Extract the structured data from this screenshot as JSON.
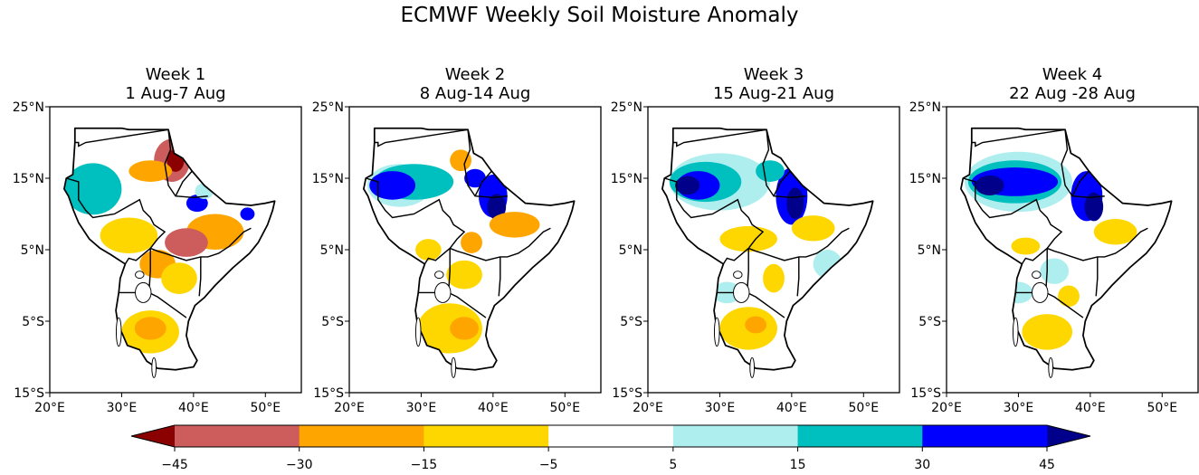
{
  "title": "ECMWF Weekly Soil Moisture Anomaly",
  "chart_data": {
    "type": "heatmap",
    "title": "ECMWF Weekly Soil Moisture Anomaly",
    "xlim": [
      20,
      55
    ],
    "ylim": [
      -15,
      25
    ],
    "x_ticks": [
      20,
      30,
      40,
      50
    ],
    "x_tick_labels": [
      "20°E",
      "30°E",
      "40°E",
      "50°E"
    ],
    "y_ticks": [
      25,
      15,
      5,
      -5,
      -15
    ],
    "y_tick_labels": [
      "25°N",
      "15°N",
      "5°N",
      "5°S",
      "15°S"
    ],
    "colorbar": {
      "levels": [
        -45,
        -30,
        -15,
        -5,
        5,
        15,
        30,
        45
      ],
      "tick_labels": [
        "−45",
        "−30",
        "−15",
        "−5",
        "5",
        "15",
        "30",
        "45"
      ],
      "colors": [
        "#cd5c5c",
        "#ffa500",
        "#ffd700",
        "#ffffff",
        "#afeeee",
        "#00bfbf",
        "#0000ff"
      ],
      "under_color": "#8b0000",
      "over_color": "#00008b",
      "extend": "both"
    },
    "panels": [
      {
        "title": "Week 1",
        "subtitle": "1 Aug-7 Aug",
        "anomalies": [
          {
            "lon": 37,
            "lat": 17.5,
            "rx": 2.5,
            "ry": 3,
            "value": -35
          },
          {
            "lon": 37.5,
            "lat": 17.5,
            "rx": 1.2,
            "ry": 1.6,
            "value": -48
          },
          {
            "lon": 34,
            "lat": 16,
            "rx": 3,
            "ry": 1.5,
            "value": -20
          },
          {
            "lon": 26,
            "lat": 13.5,
            "rx": 2.8,
            "ry": 2.3,
            "value": 36
          },
          {
            "lon": 26,
            "lat": 13.5,
            "rx": 4,
            "ry": 3.6,
            "value": 18
          },
          {
            "lon": 40.5,
            "lat": 11.5,
            "rx": 1.5,
            "ry": 1.2,
            "value": 33
          },
          {
            "lon": 41.5,
            "lat": 13.2,
            "rx": 1.3,
            "ry": 1.1,
            "value": 10
          },
          {
            "lon": 43,
            "lat": 7.5,
            "rx": 4,
            "ry": 2.5,
            "value": -20
          },
          {
            "lon": 39,
            "lat": 6,
            "rx": 3,
            "ry": 2,
            "value": -33
          },
          {
            "lon": 39,
            "lat": 6,
            "rx": 1.2,
            "ry": 0.9,
            "value": -45
          },
          {
            "lon": 31,
            "lat": 7,
            "rx": 4,
            "ry": 2.5,
            "value": -10
          },
          {
            "lon": 35,
            "lat": 3,
            "rx": 2.5,
            "ry": 2,
            "value": -20
          },
          {
            "lon": 38,
            "lat": 1,
            "rx": 2.5,
            "ry": 2.2,
            "value": -10
          },
          {
            "lon": 34,
            "lat": -6.5,
            "rx": 4,
            "ry": 3,
            "value": -12
          },
          {
            "lon": 34,
            "lat": -6,
            "rx": 2.2,
            "ry": 1.6,
            "value": -25
          },
          {
            "lon": 47.5,
            "lat": 10,
            "rx": 1,
            "ry": 0.9,
            "value": 32
          }
        ]
      },
      {
        "title": "Week 2",
        "subtitle": "8 Aug-14 Aug",
        "anomalies": [
          {
            "lon": 27,
            "lat": 14,
            "rx": 4.5,
            "ry": 3,
            "value": 14
          },
          {
            "lon": 29,
            "lat": 14.5,
            "rx": 5.5,
            "ry": 2.5,
            "value": 20
          },
          {
            "lon": 26,
            "lat": 14,
            "rx": 2,
            "ry": 1.3,
            "value": 45
          },
          {
            "lon": 26,
            "lat": 14,
            "rx": 3.2,
            "ry": 2,
            "value": 33
          },
          {
            "lon": 37.5,
            "lat": 15,
            "rx": 1.5,
            "ry": 1.3,
            "value": 35
          },
          {
            "lon": 40,
            "lat": 12.5,
            "rx": 2,
            "ry": 3,
            "value": 37
          },
          {
            "lon": 40.5,
            "lat": 11,
            "rx": 1.3,
            "ry": 1.8,
            "value": 48
          },
          {
            "lon": 35.5,
            "lat": 17.5,
            "rx": 1.5,
            "ry": 1.5,
            "value": -20
          },
          {
            "lon": 43,
            "lat": 8.5,
            "rx": 3.5,
            "ry": 1.8,
            "value": -20
          },
          {
            "lon": 37,
            "lat": 6,
            "rx": 1.5,
            "ry": 1.5,
            "value": -20
          },
          {
            "lon": 31,
            "lat": 5,
            "rx": 1.8,
            "ry": 1.5,
            "value": -10
          },
          {
            "lon": 36,
            "lat": 1.5,
            "rx": 2.5,
            "ry": 2,
            "value": -12
          },
          {
            "lon": 34,
            "lat": -6,
            "rx": 4.5,
            "ry": 3.5,
            "value": -10
          },
          {
            "lon": 36,
            "lat": -6,
            "rx": 2,
            "ry": 1.6,
            "value": -20
          }
        ]
      },
      {
        "title": "Week 3",
        "subtitle": "15 Aug-21 Aug",
        "anomalies": [
          {
            "lon": 30,
            "lat": 14.5,
            "rx": 7,
            "ry": 4,
            "value": 10
          },
          {
            "lon": 28,
            "lat": 14.5,
            "rx": 5,
            "ry": 2.8,
            "value": 20
          },
          {
            "lon": 27,
            "lat": 14,
            "rx": 3,
            "ry": 2,
            "value": 35
          },
          {
            "lon": 25.5,
            "lat": 14,
            "rx": 1.7,
            "ry": 1.3,
            "value": 48
          },
          {
            "lon": 40,
            "lat": 12.5,
            "rx": 2.2,
            "ry": 4,
            "value": 37
          },
          {
            "lon": 40.5,
            "lat": 11.5,
            "rx": 1.2,
            "ry": 2.2,
            "value": 48
          },
          {
            "lon": 37,
            "lat": 16,
            "rx": 2,
            "ry": 1.5,
            "value": 20
          },
          {
            "lon": 43,
            "lat": 8,
            "rx": 3,
            "ry": 1.8,
            "value": -10
          },
          {
            "lon": 34,
            "lat": 6.5,
            "rx": 4,
            "ry": 1.8,
            "value": -10
          },
          {
            "lon": 37.5,
            "lat": 1,
            "rx": 1.5,
            "ry": 2,
            "value": -10
          },
          {
            "lon": 34,
            "lat": -6,
            "rx": 4,
            "ry": 3,
            "value": -10
          },
          {
            "lon": 35,
            "lat": -5.5,
            "rx": 1.5,
            "ry": 1.2,
            "value": -20
          },
          {
            "lon": 31,
            "lat": -1,
            "rx": 2,
            "ry": 1.5,
            "value": 10
          },
          {
            "lon": 45,
            "lat": 3,
            "rx": 2,
            "ry": 2,
            "value": 10
          }
        ]
      },
      {
        "title": "Week 4",
        "subtitle": "22 Aug -28 Aug",
        "anomalies": [
          {
            "lon": 30,
            "lat": 14.5,
            "rx": 7.5,
            "ry": 4.2,
            "value": 10
          },
          {
            "lon": 29.5,
            "lat": 14.5,
            "rx": 6.5,
            "ry": 3,
            "value": 20
          },
          {
            "lon": 29.5,
            "lat": 14.5,
            "rx": 6,
            "ry": 2,
            "value": 35
          },
          {
            "lon": 26,
            "lat": 14,
            "rx": 2,
            "ry": 1.4,
            "value": 48
          },
          {
            "lon": 39.5,
            "lat": 12.5,
            "rx": 2.2,
            "ry": 3.5,
            "value": 37
          },
          {
            "lon": 40.5,
            "lat": 11,
            "rx": 1.3,
            "ry": 2,
            "value": 48
          },
          {
            "lon": 43.5,
            "lat": 7.5,
            "rx": 3,
            "ry": 1.8,
            "value": -10
          },
          {
            "lon": 31,
            "lat": 5.5,
            "rx": 2,
            "ry": 1.2,
            "value": -10
          },
          {
            "lon": 35,
            "lat": 2,
            "rx": 2,
            "ry": 1.8,
            "value": 10
          },
          {
            "lon": 34,
            "lat": -6.5,
            "rx": 3.5,
            "ry": 2.5,
            "value": -10
          },
          {
            "lon": 37,
            "lat": -1.5,
            "rx": 1.5,
            "ry": 1.5,
            "value": -10
          },
          {
            "lon": 30,
            "lat": -1,
            "rx": 2,
            "ry": 1.5,
            "value": 10
          }
        ]
      }
    ]
  }
}
